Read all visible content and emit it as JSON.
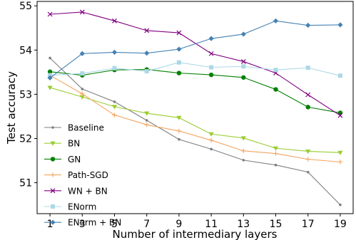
{
  "chart_data": {
    "type": "line",
    "title": "",
    "xlabel": "Number of intermediary layers",
    "ylabel": "Test accuracy",
    "x": [
      1,
      3,
      5,
      7,
      9,
      11,
      13,
      15,
      17,
      19
    ],
    "xlim": [
      0.2,
      19.8
    ],
    "ylim": [
      50.3,
      55.1
    ],
    "xticks": [
      "1",
      "3",
      "5",
      "7",
      "9",
      "11",
      "13",
      "15",
      "17",
      "19"
    ],
    "yticks": [
      "51",
      "52",
      "53",
      "54",
      "55"
    ],
    "grid": false,
    "legend_position": "lower-left",
    "series": [
      {
        "name": "Baseline",
        "color": "#7f7f7f",
        "marker": "dot",
        "values": [
          53.82,
          53.12,
          52.83,
          52.41,
          51.98,
          51.76,
          51.51,
          51.4,
          51.24,
          50.5
        ]
      },
      {
        "name": "BN",
        "color": "#9acd32",
        "marker": "triangle-down",
        "values": [
          53.15,
          52.94,
          52.72,
          52.57,
          52.47,
          52.1,
          52.01,
          51.78,
          51.71,
          51.68
        ]
      },
      {
        "name": "GN",
        "color": "#008000",
        "marker": "circle",
        "values": [
          53.51,
          53.43,
          53.55,
          53.56,
          53.48,
          53.44,
          53.38,
          53.11,
          52.71,
          52.58
        ]
      },
      {
        "name": "Path-SGD",
        "color": "#f4a460",
        "marker": "plus",
        "values": [
          53.43,
          53.01,
          52.53,
          52.31,
          52.17,
          51.96,
          51.72,
          51.66,
          51.53,
          51.47
        ]
      },
      {
        "name": "WN + BN",
        "color": "#800080",
        "marker": "x",
        "values": [
          54.81,
          54.86,
          54.66,
          54.44,
          54.39,
          53.92,
          53.74,
          53.48,
          52.99,
          52.52
        ]
      },
      {
        "name": "ENorm",
        "color": "#add8e6",
        "marker": "square",
        "values": [
          53.43,
          53.47,
          53.59,
          53.52,
          53.72,
          53.61,
          53.63,
          53.55,
          53.6,
          53.42
        ]
      },
      {
        "name": "ENorm + BN",
        "color": "#4682b4",
        "marker": "diamond",
        "values": [
          53.37,
          53.92,
          53.95,
          53.93,
          54.02,
          54.26,
          54.36,
          54.66,
          54.56,
          54.57
        ]
      }
    ]
  }
}
